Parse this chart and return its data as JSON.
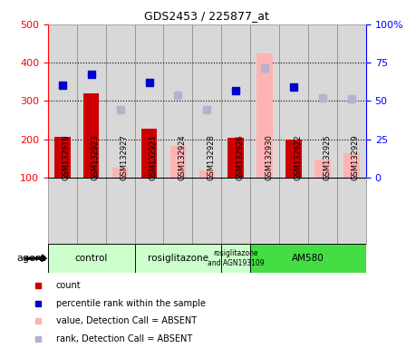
{
  "title": "GDS2453 / 225877_at",
  "samples": [
    "GSM132919",
    "GSM132923",
    "GSM132927",
    "GSM132921",
    "GSM132924",
    "GSM132928",
    "GSM132926",
    "GSM132930",
    "GSM132922",
    "GSM132925",
    "GSM132929"
  ],
  "count_values": [
    205,
    320,
    null,
    228,
    null,
    null,
    203,
    null,
    200,
    null,
    null
  ],
  "count_absent": [
    null,
    null,
    126,
    null,
    183,
    118,
    null,
    425,
    null,
    147,
    163
  ],
  "rank_present": [
    340,
    370,
    null,
    348,
    null,
    null,
    328,
    null,
    336,
    null,
    null
  ],
  "rank_absent": [
    null,
    null,
    278,
    null,
    315,
    278,
    null,
    385,
    null,
    308,
    305
  ],
  "ylim_left": [
    100,
    500
  ],
  "ylim_right": [
    0,
    100
  ],
  "count_color": "#cc0000",
  "count_absent_color": "#ffb3b3",
  "rank_present_color": "#0000cc",
  "rank_absent_color": "#b3b3cc",
  "cell_bg": "#d8d8d8",
  "cell_border": "#888888",
  "light_green": "#ccffcc",
  "mid_green": "#44dd44",
  "agent_groups": [
    {
      "label": "control",
      "start": 0,
      "end": 2,
      "color": "#ccffcc"
    },
    {
      "label": "rosiglitazone",
      "start": 3,
      "end": 5,
      "color": "#ccffcc"
    },
    {
      "label": "rosiglitazone\nand AGN193109",
      "start": 6,
      "end": 6,
      "color": "#ccffcc"
    },
    {
      "label": "AM580",
      "start": 7,
      "end": 10,
      "color": "#44dd44"
    }
  ],
  "legend_items": [
    {
      "color": "#cc0000",
      "marker": "s",
      "label": "count"
    },
    {
      "color": "#0000cc",
      "marker": "s",
      "label": "percentile rank within the sample"
    },
    {
      "color": "#ffb3b3",
      "marker": "s",
      "label": "value, Detection Call = ABSENT"
    },
    {
      "color": "#b3b3cc",
      "marker": "s",
      "label": "rank, Detection Call = ABSENT"
    }
  ]
}
